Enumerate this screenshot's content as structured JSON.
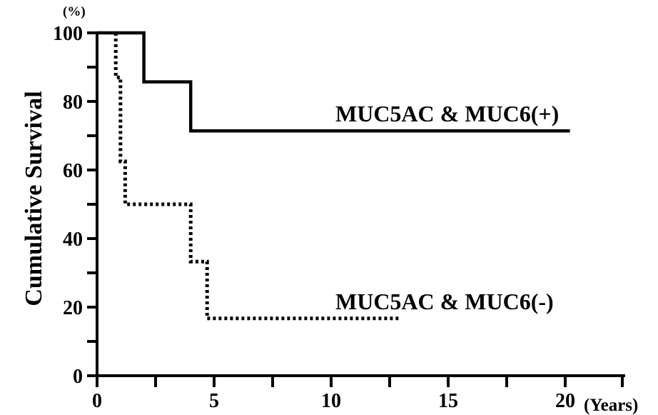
{
  "chart_data": {
    "type": "line",
    "ylabel": "Cumulative Survival",
    "y_unit": "(%)",
    "x_unit": "(Years)",
    "xlim": [
      0,
      22
    ],
    "ylim": [
      0,
      100
    ],
    "x_ticks": [
      0,
      5,
      10,
      15,
      20
    ],
    "x_minor_ticks": [
      2.5,
      7.5,
      12.5,
      17.5
    ],
    "y_ticks": [
      0,
      20,
      40,
      60,
      80,
      100
    ],
    "y_minor_ticks": [
      10,
      30,
      50,
      70,
      90
    ],
    "grid": false,
    "series": [
      {
        "name": "MUC5AC & MUC6(+)",
        "style": "solid",
        "color": "#000000",
        "points": [
          [
            0,
            100
          ],
          [
            2,
            100
          ],
          [
            2,
            85.7
          ],
          [
            4,
            85.7
          ],
          [
            4,
            71.4
          ],
          [
            20.2,
            71.4
          ]
        ]
      },
      {
        "name": "MUC5AC & MUC6(-)",
        "style": "dotted",
        "color": "#000000",
        "points": [
          [
            0.8,
            100
          ],
          [
            0.8,
            87
          ],
          [
            1.0,
            87
          ],
          [
            1.0,
            62.5
          ],
          [
            1.2,
            62.5
          ],
          [
            1.2,
            50
          ],
          [
            4.0,
            50
          ],
          [
            4.0,
            33.3
          ],
          [
            4.7,
            33.3
          ],
          [
            4.7,
            16.7
          ],
          [
            12.9,
            16.7
          ]
        ]
      }
    ]
  }
}
